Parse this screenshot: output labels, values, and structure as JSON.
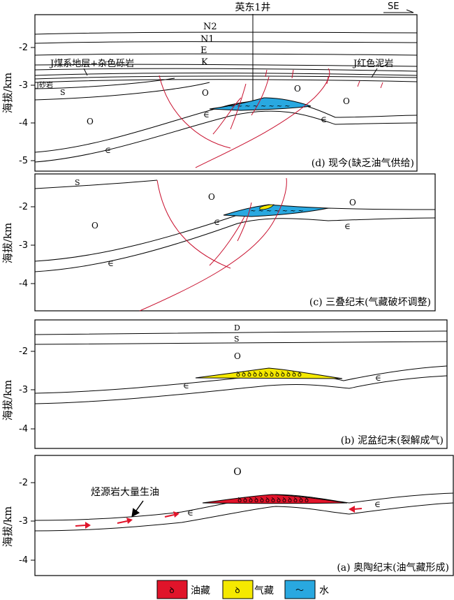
{
  "well_name": "英东1井",
  "direction": "SE",
  "axis_title": "海拔/km",
  "legend": [
    {
      "name": "oil",
      "label": "油藏",
      "color": "#e0142a",
      "symbol": "ꝺ"
    },
    {
      "name": "gas",
      "label": "气藏",
      "color": "#f5e900",
      "symbol": "ꝺ"
    },
    {
      "name": "water",
      "label": "水",
      "color": "#29a8e0",
      "symbol": "～"
    }
  ],
  "panels": {
    "d": {
      "caption": "(d) 现今(缺乏油气供给)",
      "ticks": [
        "-2",
        "-3",
        "-4",
        "-5"
      ],
      "strata": [
        "N2",
        "N1",
        "E",
        "K",
        "O",
        "O",
        "O",
        "O",
        "S",
        "∈",
        "∈",
        "∈"
      ],
      "callouts": [
        "J煤系地层+杂色砾岩",
        "J红色泥岩",
        "J砂岩"
      ]
    },
    "c": {
      "caption": "(c) 三叠纪末(气藏破坏调整)",
      "ticks": [
        "-2",
        "-3",
        "-4"
      ],
      "strata": [
        "S",
        "O",
        "O",
        "O",
        "∈",
        "∈",
        "∈"
      ]
    },
    "b": {
      "caption": "(b) 泥盆纪末(裂解成气)",
      "ticks": [
        "-2",
        "-3",
        "-4"
      ],
      "strata": [
        "D",
        "S",
        "O",
        "∈",
        "∈"
      ]
    },
    "a": {
      "caption": "(a) 奥陶纪末(油气藏形成)",
      "ticks": [
        "-2",
        "-3",
        "-4"
      ],
      "strata": [
        "O",
        "∈"
      ],
      "annotation": "烃源岩大量生油"
    }
  }
}
